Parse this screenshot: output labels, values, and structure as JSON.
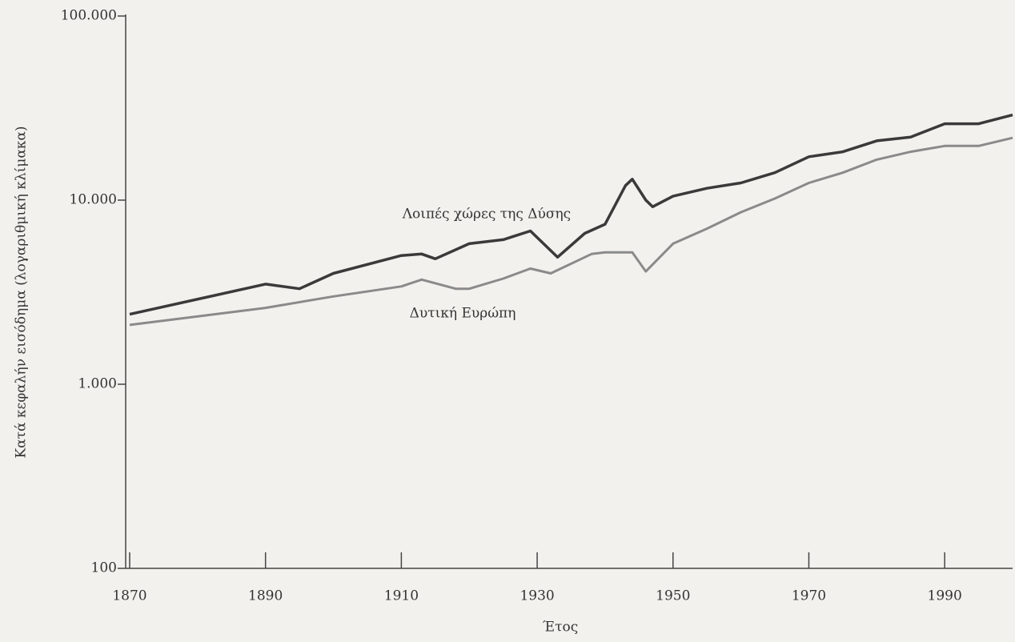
{
  "chart_data": {
    "type": "line",
    "y_label": "Κατά κεφαλήν εισόδημα (λογαριθμική κλίμακα)",
    "x_label": "Έτος",
    "log_scale": true,
    "xlim": [
      1870,
      2000
    ],
    "xticks": [
      1870,
      1890,
      1910,
      1930,
      1950,
      1970,
      1990
    ],
    "ylim": [
      100,
      100000
    ],
    "yticks": [
      100,
      {
        "value": 1000,
        "label": "1.000"
      },
      {
        "value": 10000,
        "label": "10.000"
      },
      {
        "value": 100000,
        "label": "100.000"
      }
    ],
    "series": [
      {
        "name": "Λοιπές χώρες της Δύσης",
        "color": "#3a3a3a",
        "x": [
          1870,
          1890,
          1895,
          1900,
          1910,
          1913,
          1915,
          1920,
          1925,
          1929,
          1933,
          1937,
          1940,
          1943,
          1944,
          1946,
          1947,
          1950,
          1955,
          1960,
          1965,
          1970,
          1975,
          1980,
          1985,
          1990,
          1995,
          2000
        ],
        "values": [
          2400,
          3500,
          3300,
          4000,
          5000,
          5100,
          4800,
          5800,
          6100,
          6800,
          4900,
          6600,
          7400,
          12000,
          13000,
          10000,
          9200,
          10500,
          11600,
          12400,
          14100,
          17200,
          18300,
          21000,
          22000,
          26000,
          26000,
          29000
        ]
      },
      {
        "name": "Δυτική Ευρώπη",
        "color": "#8a8a8a",
        "x": [
          1870,
          1890,
          1900,
          1910,
          1913,
          1918,
          1920,
          1925,
          1929,
          1932,
          1938,
          1940,
          1944,
          1946,
          1950,
          1955,
          1960,
          1965,
          1970,
          1975,
          1980,
          1985,
          1990,
          1995,
          2000
        ],
        "values": [
          2100,
          2600,
          3000,
          3400,
          3700,
          3300,
          3300,
          3750,
          4250,
          4000,
          5100,
          5200,
          5200,
          4100,
          5800,
          7000,
          8600,
          10200,
          12400,
          14100,
          16600,
          18300,
          19700,
          19700,
          21800
        ]
      }
    ]
  }
}
